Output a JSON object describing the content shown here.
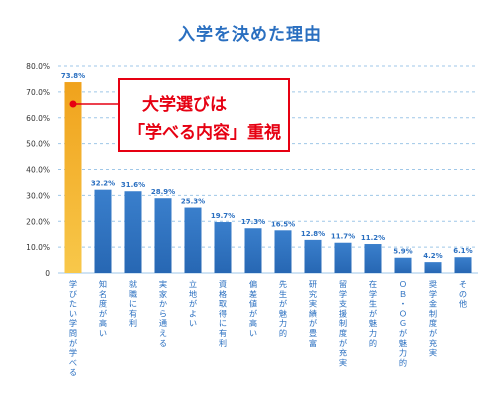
{
  "chart_data": {
    "type": "bar",
    "title": "入学を決めた理由",
    "categories": [
      "学びたい学問が学べる",
      "知名度が高い",
      "就職に有利",
      "実家から通える",
      "立地がよい",
      "資格取得に有利",
      "偏差値が高い",
      "先生が魅力的",
      "研究実績が豊富",
      "留学支援制度が充実",
      "在学生が魅力的",
      "ＯＢ・ＯＧが魅力的",
      "奨学金制度が充実",
      "その他"
    ],
    "values": [
      73.8,
      32.2,
      31.6,
      28.9,
      25.3,
      19.7,
      17.3,
      16.5,
      12.8,
      11.7,
      11.2,
      5.9,
      4.2,
      6.1
    ],
    "value_labels": [
      "73.8%",
      "32.2%",
      "31.6%",
      "28.9%",
      "25.3%",
      "19.7%",
      "17.3%",
      "16.5%",
      "12.8%",
      "11.7%",
      "11.2%",
      "5.9%",
      "4.2%",
      "6.1%"
    ],
    "y_ticks": [
      0,
      10,
      20,
      30,
      40,
      50,
      60,
      70,
      80
    ],
    "y_tick_labels": [
      "0",
      "10.0%",
      "20.0%",
      "30.0%",
      "40.0%",
      "50.0%",
      "60.0%",
      "70.0%",
      "80.0%"
    ],
    "ylim": [
      0,
      80
    ],
    "grid": true,
    "highlight_index": 0,
    "colors": {
      "highlight": "#f5a623",
      "bar": "#2e75c4",
      "title": "#2a6fc0",
      "grid": "#9fc7e8",
      "callout": "#e60012",
      "label": "#2a6fc0"
    }
  },
  "annotation": {
    "line1": "大学選びは",
    "line2": "「学べる内容」重視"
  }
}
